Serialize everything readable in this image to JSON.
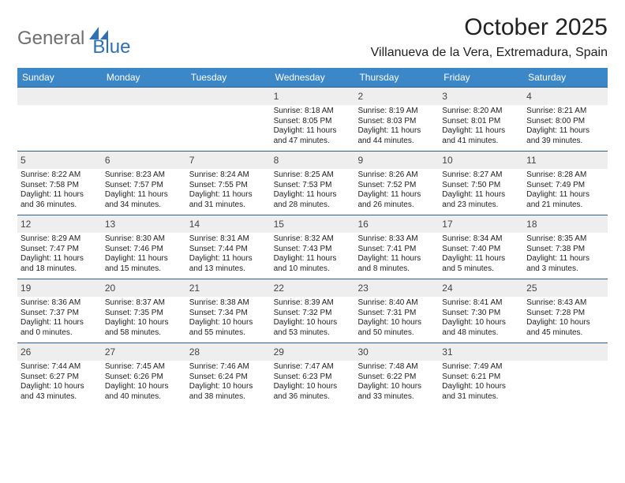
{
  "logo": {
    "word1": "General",
    "word2": "Blue"
  },
  "title": "October 2025",
  "location": "Villanueva de la Vera, Extremadura, Spain",
  "colors": {
    "headerBg": "#3b87c8",
    "headerText": "#ffffff",
    "rowBorder": "#2d5f8f",
    "dayNumBg": "#eeeeee",
    "logoGray": "#6f6f6f",
    "logoBlue": "#2e6fb5",
    "bodyText": "#222222"
  },
  "weekdays": [
    "Sunday",
    "Monday",
    "Tuesday",
    "Wednesday",
    "Thursday",
    "Friday",
    "Saturday"
  ],
  "weeks": [
    [
      null,
      null,
      null,
      {
        "n": "1",
        "sr": "8:18 AM",
        "ss": "8:05 PM",
        "dl": "11 hours and 47 minutes."
      },
      {
        "n": "2",
        "sr": "8:19 AM",
        "ss": "8:03 PM",
        "dl": "11 hours and 44 minutes."
      },
      {
        "n": "3",
        "sr": "8:20 AM",
        "ss": "8:01 PM",
        "dl": "11 hours and 41 minutes."
      },
      {
        "n": "4",
        "sr": "8:21 AM",
        "ss": "8:00 PM",
        "dl": "11 hours and 39 minutes."
      }
    ],
    [
      {
        "n": "5",
        "sr": "8:22 AM",
        "ss": "7:58 PM",
        "dl": "11 hours and 36 minutes."
      },
      {
        "n": "6",
        "sr": "8:23 AM",
        "ss": "7:57 PM",
        "dl": "11 hours and 34 minutes."
      },
      {
        "n": "7",
        "sr": "8:24 AM",
        "ss": "7:55 PM",
        "dl": "11 hours and 31 minutes."
      },
      {
        "n": "8",
        "sr": "8:25 AM",
        "ss": "7:53 PM",
        "dl": "11 hours and 28 minutes."
      },
      {
        "n": "9",
        "sr": "8:26 AM",
        "ss": "7:52 PM",
        "dl": "11 hours and 26 minutes."
      },
      {
        "n": "10",
        "sr": "8:27 AM",
        "ss": "7:50 PM",
        "dl": "11 hours and 23 minutes."
      },
      {
        "n": "11",
        "sr": "8:28 AM",
        "ss": "7:49 PM",
        "dl": "11 hours and 21 minutes."
      }
    ],
    [
      {
        "n": "12",
        "sr": "8:29 AM",
        "ss": "7:47 PM",
        "dl": "11 hours and 18 minutes."
      },
      {
        "n": "13",
        "sr": "8:30 AM",
        "ss": "7:46 PM",
        "dl": "11 hours and 15 minutes."
      },
      {
        "n": "14",
        "sr": "8:31 AM",
        "ss": "7:44 PM",
        "dl": "11 hours and 13 minutes."
      },
      {
        "n": "15",
        "sr": "8:32 AM",
        "ss": "7:43 PM",
        "dl": "11 hours and 10 minutes."
      },
      {
        "n": "16",
        "sr": "8:33 AM",
        "ss": "7:41 PM",
        "dl": "11 hours and 8 minutes."
      },
      {
        "n": "17",
        "sr": "8:34 AM",
        "ss": "7:40 PM",
        "dl": "11 hours and 5 minutes."
      },
      {
        "n": "18",
        "sr": "8:35 AM",
        "ss": "7:38 PM",
        "dl": "11 hours and 3 minutes."
      }
    ],
    [
      {
        "n": "19",
        "sr": "8:36 AM",
        "ss": "7:37 PM",
        "dl": "11 hours and 0 minutes."
      },
      {
        "n": "20",
        "sr": "8:37 AM",
        "ss": "7:35 PM",
        "dl": "10 hours and 58 minutes."
      },
      {
        "n": "21",
        "sr": "8:38 AM",
        "ss": "7:34 PM",
        "dl": "10 hours and 55 minutes."
      },
      {
        "n": "22",
        "sr": "8:39 AM",
        "ss": "7:32 PM",
        "dl": "10 hours and 53 minutes."
      },
      {
        "n": "23",
        "sr": "8:40 AM",
        "ss": "7:31 PM",
        "dl": "10 hours and 50 minutes."
      },
      {
        "n": "24",
        "sr": "8:41 AM",
        "ss": "7:30 PM",
        "dl": "10 hours and 48 minutes."
      },
      {
        "n": "25",
        "sr": "8:43 AM",
        "ss": "7:28 PM",
        "dl": "10 hours and 45 minutes."
      }
    ],
    [
      {
        "n": "26",
        "sr": "7:44 AM",
        "ss": "6:27 PM",
        "dl": "10 hours and 43 minutes."
      },
      {
        "n": "27",
        "sr": "7:45 AM",
        "ss": "6:26 PM",
        "dl": "10 hours and 40 minutes."
      },
      {
        "n": "28",
        "sr": "7:46 AM",
        "ss": "6:24 PM",
        "dl": "10 hours and 38 minutes."
      },
      {
        "n": "29",
        "sr": "7:47 AM",
        "ss": "6:23 PM",
        "dl": "10 hours and 36 minutes."
      },
      {
        "n": "30",
        "sr": "7:48 AM",
        "ss": "6:22 PM",
        "dl": "10 hours and 33 minutes."
      },
      {
        "n": "31",
        "sr": "7:49 AM",
        "ss": "6:21 PM",
        "dl": "10 hours and 31 minutes."
      },
      null
    ]
  ],
  "labels": {
    "sunrise": "Sunrise: ",
    "sunset": "Sunset: ",
    "daylight": "Daylight: "
  }
}
